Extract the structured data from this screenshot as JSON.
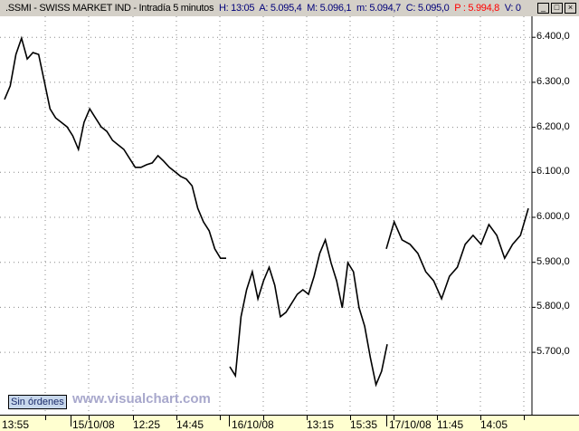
{
  "title": {
    "symbol": ".SSMI - SWISS MARKET IND - Intradía 5 minutos",
    "h": "H: 13:05",
    "a": "A: 5.095,4",
    "m": "M: 5.096,1",
    "mn": "m: 5.094,7",
    "c": "C: 5.095,0",
    "p": "P : 5.994,8",
    "v": "V: 0"
  },
  "window_buttons": [
    "_",
    "□",
    "×"
  ],
  "orders_button": "Sin órdenes",
  "watermark": "www.visualchart.com",
  "colors": {
    "titlebar": "#d4d0c8",
    "axis_bg": "#ffffd0",
    "price_red": "#ff0000"
  },
  "chart_data": {
    "type": "line",
    "yticks": [
      "6.400,0",
      "6.300,0",
      "6.200,0",
      "6.100,0",
      "6.000,0",
      "5.900,0",
      "5.800,0",
      "5.700,0"
    ],
    "ytick_values": [
      6400,
      6300,
      6200,
      6100,
      6000,
      5900,
      5800,
      5700
    ],
    "xticks": [
      "13:55",
      "15/10/08",
      "12:25",
      "14:45",
      "16/10/08",
      "13:15",
      "15:35",
      "17/10/08",
      "11:45",
      "14:05"
    ],
    "ylim": [
      5580,
      6440
    ],
    "grid": true,
    "segments": [
      [
        6262,
        6292,
        6362,
        6398,
        6352,
        6366,
        6362,
        6302,
        6241,
        6221,
        6211,
        6201,
        6181,
        6151,
        6211,
        6241,
        6221,
        6201,
        6191,
        6171,
        6161,
        6151,
        6131,
        6111,
        6111,
        6117,
        6121,
        6137,
        6125,
        6111,
        6101,
        6091,
        6085,
        6070,
        6020,
        5990,
        5970,
        5930,
        5909,
        5909
      ],
      [
        5668,
        5648,
        5779,
        5839,
        5879,
        5819,
        5859,
        5889,
        5849,
        5779,
        5789,
        5809,
        5829,
        5839,
        5829,
        5869,
        5920,
        5950,
        5899,
        5859,
        5799,
        5899,
        5879,
        5799,
        5758,
        5688,
        5628,
        5658,
        5718
      ],
      [
        5930,
        5990,
        5950,
        5940,
        5920,
        5879,
        5859,
        5819,
        5869,
        5889,
        5940,
        5960,
        5940,
        5984,
        5960,
        5909,
        5940,
        5960,
        6020
      ]
    ]
  }
}
